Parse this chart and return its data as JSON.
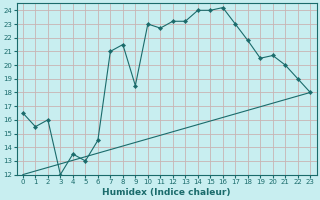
{
  "xlabel": "Humidex (Indice chaleur)",
  "bg_color": "#c8eef0",
  "grid_color": "#c8b4b4",
  "line_color": "#1a6b6b",
  "xlim": [
    -0.5,
    23.5
  ],
  "ylim": [
    12,
    24.5
  ],
  "yticks": [
    12,
    13,
    14,
    15,
    16,
    17,
    18,
    19,
    20,
    21,
    22,
    23,
    24
  ],
  "xticks": [
    0,
    1,
    2,
    3,
    4,
    5,
    6,
    7,
    8,
    9,
    10,
    11,
    12,
    13,
    14,
    15,
    16,
    17,
    18,
    19,
    20,
    21,
    22,
    23
  ],
  "line1_x": [
    0,
    1,
    2,
    3,
    4,
    5,
    6,
    7,
    8,
    9,
    10,
    11,
    12,
    13,
    14,
    15,
    16,
    17,
    18,
    19,
    20,
    21,
    22,
    23
  ],
  "line1_y": [
    16.5,
    15.5,
    16.0,
    12.0,
    13.5,
    13.0,
    14.5,
    21.0,
    21.5,
    18.5,
    23.0,
    22.7,
    23.2,
    23.2,
    24.0,
    24.0,
    24.2,
    23.0,
    21.8,
    20.5,
    20.7,
    20.0,
    19.0,
    18.0
  ],
  "line2_x": [
    0,
    23
  ],
  "line2_y": [
    12.0,
    18.0
  ]
}
